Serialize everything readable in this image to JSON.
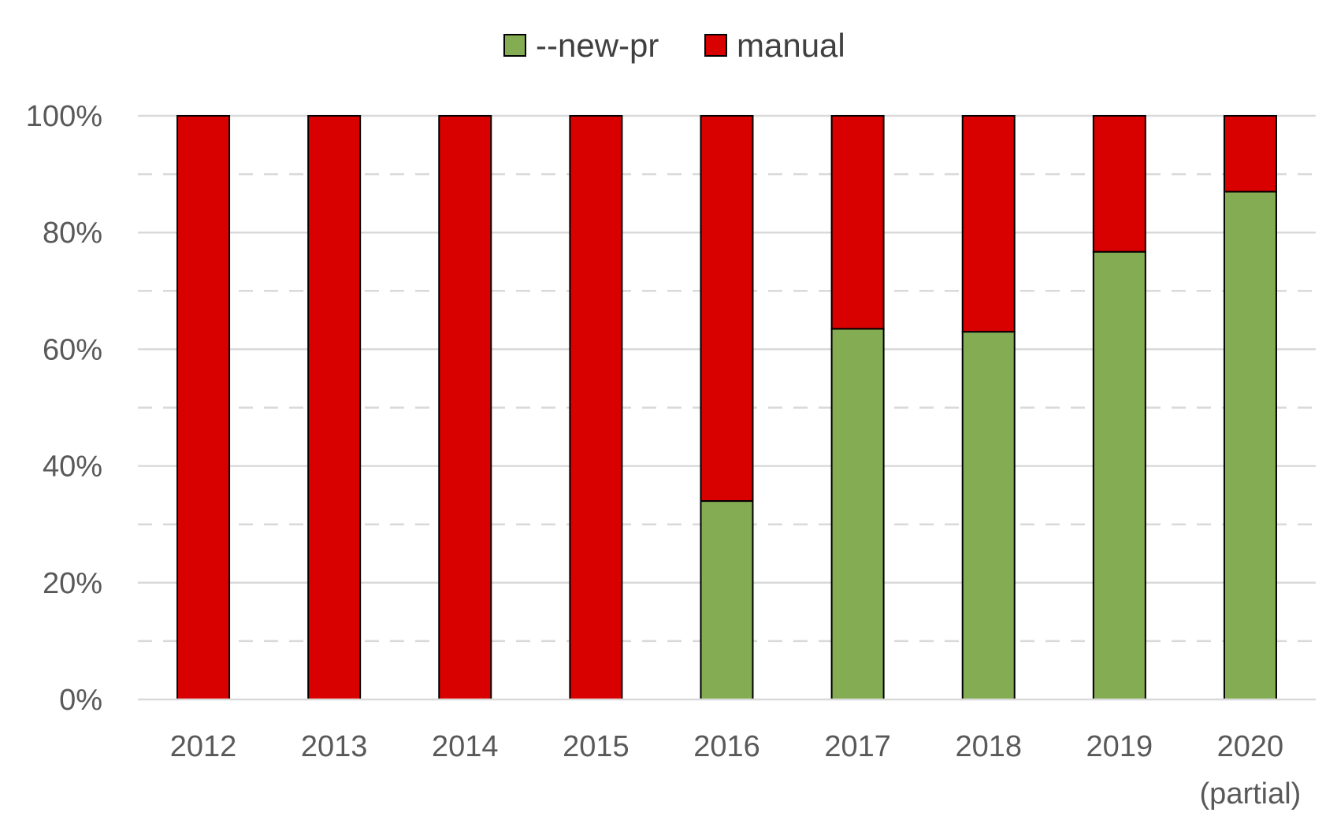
{
  "chart_data": {
    "type": "bar",
    "stacked": true,
    "percent_stacked": true,
    "categories": [
      "2012",
      "2013",
      "2014",
      "2015",
      "2016",
      "2017",
      "2018",
      "2019",
      "2020"
    ],
    "category_sublabels": [
      "",
      "",
      "",
      "",
      "",
      "",
      "",
      "",
      "(partial)"
    ],
    "series": [
      {
        "name": "--new-pr",
        "color": "#84AC53",
        "values": [
          0,
          0,
          0,
          0,
          34,
          63.5,
          63,
          76.7,
          87
        ]
      },
      {
        "name": "manual",
        "color": "#D90000",
        "values": [
          100,
          100,
          100,
          100,
          66,
          36.5,
          37,
          23.3,
          13
        ]
      }
    ],
    "title": "",
    "xlabel": "",
    "ylabel": "",
    "ylim": [
      0,
      100
    ],
    "y_ticks": [
      {
        "value": 0,
        "label": "0%"
      },
      {
        "value": 20,
        "label": "20%"
      },
      {
        "value": 40,
        "label": "40%"
      },
      {
        "value": 60,
        "label": "60%"
      },
      {
        "value": 80,
        "label": "80%"
      },
      {
        "value": 100,
        "label": "100%"
      }
    ],
    "grid": "major solid, minor dashed",
    "legend_position": "top-center"
  }
}
